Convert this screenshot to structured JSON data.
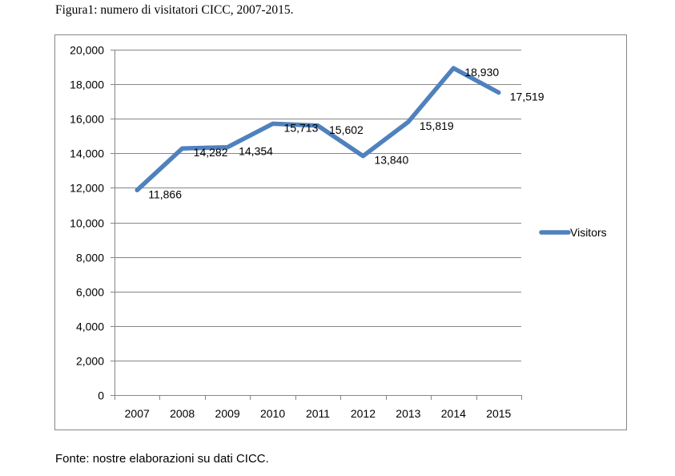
{
  "figure": {
    "caption": "Figura1: numero di visitatori CICC, 2007-2015.",
    "source": "Fonte: nostre elaborazioni su dati CICC."
  },
  "chart_data": {
    "type": "line",
    "title": "",
    "xlabel": "",
    "ylabel": "",
    "categories": [
      "2007",
      "2008",
      "2009",
      "2010",
      "2011",
      "2012",
      "2013",
      "2014",
      "2015"
    ],
    "series": [
      {
        "name": "Visitors",
        "values": [
          11866,
          14282,
          14354,
          15713,
          15602,
          13840,
          15819,
          18930,
          17519
        ],
        "data_labels": [
          "11,866",
          "14,282",
          "14,354",
          "15,713",
          "15,602",
          "13,840",
          "15,819",
          "18,930",
          "17,519"
        ],
        "color": "#4f81bd"
      }
    ],
    "ylim": [
      0,
      20000
    ],
    "yticks": [
      0,
      2000,
      4000,
      6000,
      8000,
      10000,
      12000,
      14000,
      16000,
      18000,
      20000
    ],
    "ytick_labels": [
      "0",
      "2,000",
      "4,000",
      "6,000",
      "8,000",
      "10,000",
      "12,000",
      "14,000",
      "16,000",
      "18,000",
      "20,000"
    ],
    "grid": true,
    "legend_position": "right"
  }
}
